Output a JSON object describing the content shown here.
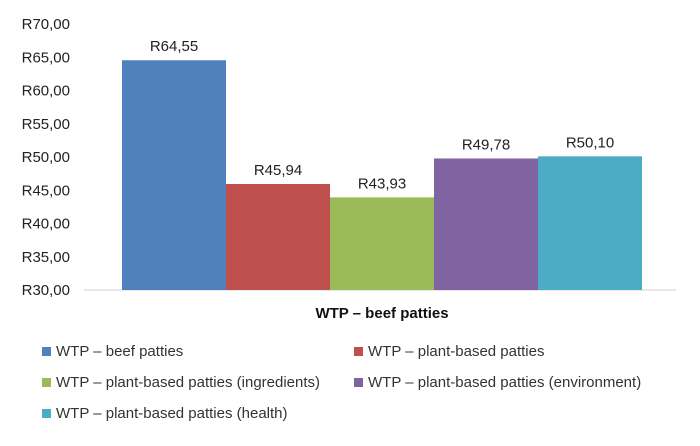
{
  "chart_data": {
    "type": "bar",
    "categories": [
      "WTP – beef patties"
    ],
    "series": [
      {
        "name": "WTP – beef patties",
        "values": [
          64.55
        ],
        "label": "R64,55",
        "color": "#4f81bd"
      },
      {
        "name": "WTP – plant-based patties",
        "values": [
          45.94
        ],
        "label": "R45,94",
        "color": "#c0504d"
      },
      {
        "name": "WTP – plant-based patties (ingredients)",
        "values": [
          43.93
        ],
        "label": "R43,93",
        "color": "#9bbb59"
      },
      {
        "name": "WTP – plant-based patties (environment)",
        "values": [
          49.78
        ],
        "label": "R49,78",
        "color": "#8064a2"
      },
      {
        "name": "WTP – plant-based patties (health)",
        "values": [
          50.1
        ],
        "label": "R50,10",
        "color": "#4bacc6"
      }
    ],
    "y_ticks": [
      "R30,00",
      "R35,00",
      "R40,00",
      "R45,00",
      "R50,00",
      "R55,00",
      "R60,00",
      "R65,00",
      "R70,00"
    ],
    "ylim": [
      30,
      70
    ],
    "grid": false,
    "legend_position": "bottom",
    "title": "",
    "xlabel": "",
    "ylabel": ""
  }
}
